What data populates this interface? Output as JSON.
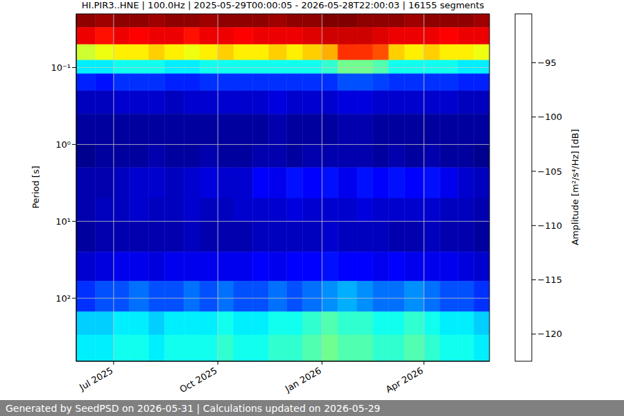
{
  "chart_data": {
    "type": "heatmap",
    "title": "HI.PIR3..HNE | 100.0Hz | 2025-05-29T00:00:05 - 2026-05-28T22:00:03 | 16155 segments",
    "ylabel": "Period [s]",
    "footer": "Generated by SeedPSD on 2026-05-31 | Calculations updated on 2026-05-29",
    "log": "y",
    "grid": true,
    "xlim": [
      "2025-05-29T00:00:05",
      "2026-05-28T22:00:03"
    ],
    "xticks": [
      {
        "value": "2025-07-01",
        "label": "Jul 2025"
      },
      {
        "value": "2025-10-01",
        "label": "Oct 2025"
      },
      {
        "value": "2026-01-01",
        "label": "Jan 2026"
      },
      {
        "value": "2026-04-01",
        "label": "Apr 2026"
      }
    ],
    "ylim": [
      0.02,
      660
    ],
    "yticks": [
      {
        "value": 0.1,
        "label": "10⁻¹"
      },
      {
        "value": 1,
        "label": "10⁰"
      },
      {
        "value": 10,
        "label": "10¹"
      },
      {
        "value": 100,
        "label": "10²"
      }
    ],
    "x_edges": [
      "2025-05-29T00:00:05",
      "2025-06-15",
      "2025-07-01",
      "2025-07-15",
      "2025-08-01",
      "2025-08-15",
      "2025-09-01",
      "2025-09-15",
      "2025-10-01",
      "2025-10-15",
      "2025-11-01",
      "2025-11-15",
      "2025-12-01",
      "2025-12-15",
      "2026-01-01",
      "2026-01-15",
      "2026-02-01",
      "2026-02-15",
      "2026-03-01",
      "2026-03-15",
      "2026-04-01",
      "2026-04-15",
      "2026-05-01",
      "2026-05-15",
      "2026-05-28T22:00:03"
    ],
    "y_edges": [
      0.02,
      0.03,
      0.05,
      0.08,
      0.12,
      0.2,
      0.4,
      1,
      2,
      5,
      10,
      25,
      60,
      150,
      300,
      660
    ],
    "values": [
      [
        -91,
        -91.5,
        -91,
        -91,
        -91.5,
        -91,
        -91,
        -91.5,
        -91,
        -91,
        -91,
        -91.5,
        -91,
        -91,
        -90.5,
        -90.5,
        -91,
        -91,
        -91,
        -91.5,
        -91,
        -91,
        -91,
        -91.5
      ],
      [
        -94,
        -95,
        -94,
        -94.5,
        -94,
        -94,
        -95,
        -94,
        -94,
        -94.5,
        -94,
        -94,
        -94,
        -93.5,
        -93,
        -93,
        -93,
        -93.5,
        -94,
        -94,
        -94,
        -94.5,
        -94,
        -94
      ],
      [
        -104,
        -103,
        -102,
        -102,
        -101,
        -102,
        -103,
        -102,
        -101,
        -102,
        -102,
        -101,
        -102,
        -101,
        -100,
        -96,
        -96,
        -97,
        -101,
        -102,
        -101,
        -102,
        -102,
        -103
      ],
      [
        -111,
        -111,
        -110,
        -110,
        -110,
        -111,
        -111,
        -110,
        -110,
        -110,
        -110,
        -110,
        -110,
        -110,
        -109,
        -107,
        -107,
        -108,
        -110,
        -110,
        -110,
        -110,
        -111,
        -111
      ],
      [
        -117.5,
        -118,
        -117,
        -117,
        -117,
        -117.5,
        -117.5,
        -117,
        -117,
        -117,
        -117,
        -117,
        -117,
        -117,
        -117,
        -116,
        -116,
        -116.5,
        -117,
        -117,
        -117,
        -117,
        -117.5,
        -117.5
      ],
      [
        -120.5,
        -120.5,
        -120,
        -120,
        -120,
        -120.5,
        -120,
        -120,
        -120,
        -120,
        -120,
        -119.5,
        -120,
        -120,
        -120,
        -119.5,
        -119.5,
        -120,
        -120,
        -120,
        -120,
        -120,
        -120.5,
        -120.5
      ],
      [
        -121.5,
        -121.5,
        -121.5,
        -121.5,
        -121.5,
        -121.5,
        -121.5,
        -121.5,
        -121.5,
        -121.5,
        -121.5,
        -121,
        -121.5,
        -121.5,
        -121.5,
        -121,
        -121,
        -121.5,
        -121.5,
        -121.5,
        -121.5,
        -121.5,
        -121.5,
        -121.5
      ],
      [
        -122,
        -121.5,
        -121.5,
        -121.5,
        -121,
        -121.5,
        -121.5,
        -121,
        -121.5,
        -121.5,
        -121,
        -121,
        -121.5,
        -121,
        -121,
        -121,
        -121,
        -121.5,
        -121,
        -121.5,
        -121,
        -121.5,
        -121.5,
        -122
      ],
      [
        -121,
        -121,
        -120.5,
        -120,
        -120,
        -120.5,
        -120,
        -119.5,
        -120,
        -120,
        -118.5,
        -119,
        -118,
        -118.5,
        -118,
        -119,
        -118,
        -118.5,
        -118,
        -118.5,
        -118,
        -119,
        -120,
        -120.5
      ],
      [
        -121,
        -120.5,
        -120.5,
        -120,
        -120.5,
        -120.5,
        -120,
        -120.5,
        -120.5,
        -120,
        -120,
        -120,
        -119.5,
        -120,
        -120,
        -120,
        -119.5,
        -120,
        -120,
        -120,
        -120,
        -120.5,
        -120.5,
        -121
      ],
      [
        -121.5,
        -121,
        -121,
        -121,
        -121,
        -121,
        -120.5,
        -121,
        -121,
        -121,
        -120.5,
        -120.5,
        -120.5,
        -120.5,
        -120,
        -120.5,
        -120.5,
        -120.5,
        -121,
        -121,
        -120.5,
        -121,
        -121,
        -121.5
      ],
      [
        -120,
        -119.5,
        -119,
        -119,
        -119.5,
        -119,
        -119,
        -119,
        -119,
        -119,
        -118.5,
        -119,
        -118.5,
        -118.5,
        -118,
        -118.5,
        -118.5,
        -119,
        -118.5,
        -119,
        -119,
        -119,
        -119.5,
        -120
      ],
      [
        -117,
        -116,
        -116,
        -115,
        -116,
        -116,
        -115,
        -116,
        -115,
        -116,
        -116,
        -115,
        -116,
        -115,
        -114,
        -113,
        -114,
        -115,
        -115,
        -114,
        -115,
        -116,
        -116,
        -117
      ],
      [
        -112,
        -112,
        -111,
        -111,
        -112,
        -111,
        -111,
        -111,
        -110,
        -111,
        -111,
        -110,
        -110,
        -109,
        -108,
        -109,
        -109,
        -110,
        -110,
        -109,
        -110,
        -111,
        -111,
        -112
      ],
      [
        -111,
        -111,
        -110,
        -110,
        -111,
        -110,
        -110,
        -110,
        -109,
        -110,
        -110,
        -109,
        -109,
        -108,
        -107,
        -108,
        -108,
        -109,
        -109,
        -108,
        -109,
        -110,
        -110,
        -111
      ]
    ],
    "colorbar": {
      "range": [
        -122.5,
        -90.5
      ],
      "ticks": [
        {
          "value": -95,
          "label": "−95"
        },
        {
          "value": -100,
          "label": "−100"
        },
        {
          "value": -105,
          "label": "−105"
        },
        {
          "value": -110,
          "label": "−110"
        },
        {
          "value": -115,
          "label": "−115"
        },
        {
          "value": -120,
          "label": "−120"
        }
      ],
      "label": "Amplitude [m²/s⁴/Hz] [dB]"
    }
  }
}
